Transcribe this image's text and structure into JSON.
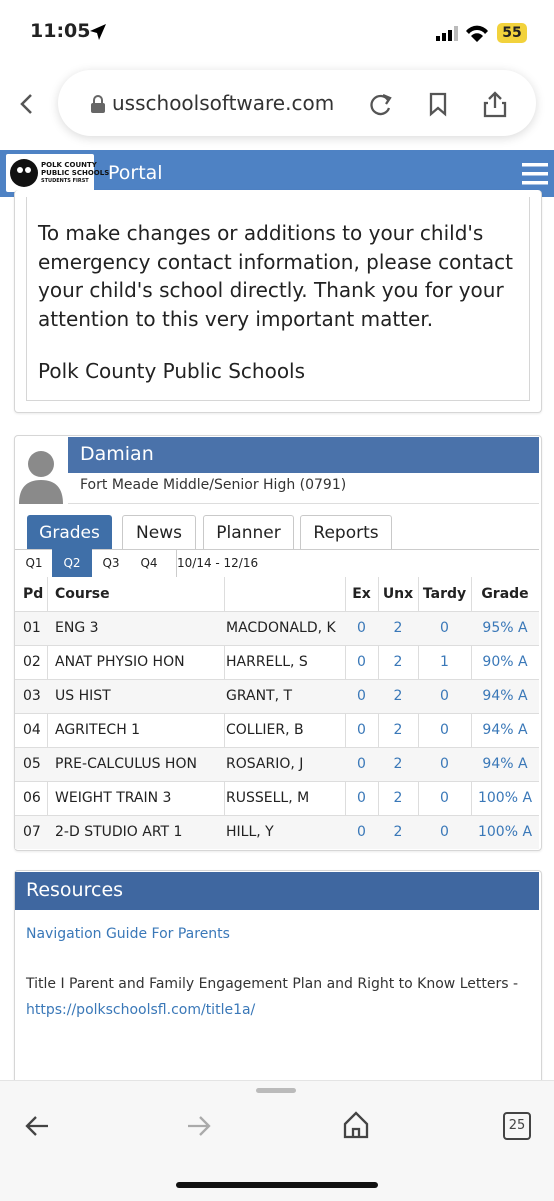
{
  "status": {
    "time": "11:05",
    "battery": "55"
  },
  "browser": {
    "url": "usschoolsoftware.com",
    "tabs": "25"
  },
  "header": {
    "logo": [
      "POLK COUNTY",
      "PUBLIC SCHOOLS",
      "STUDENTS FIRST"
    ],
    "title": "Portal"
  },
  "notice": {
    "lines": [
      "To make changes or additions to your child's",
      "emergency contact information, please contact",
      "your child's school directly.  Thank you for your",
      "attention to this very important matter."
    ],
    "signature": "Polk County Public Schools"
  },
  "student": {
    "name": "Damian",
    "school": "Fort Meade Middle/Senior High (0791)"
  },
  "tabs": [
    "Grades",
    "News",
    "Planner",
    "Reports"
  ],
  "quarters": [
    "Q1",
    "Q2",
    "Q3",
    "Q4"
  ],
  "date_range": "10/14 - 12/16",
  "table": {
    "headers": [
      "Pd",
      "Course",
      "Ex",
      "Unx",
      "Tardy",
      "Grade"
    ],
    "rows": [
      [
        "01",
        "ENG 3",
        "MACDONALD, K",
        "0",
        "2",
        "0",
        "95% A"
      ],
      [
        "02",
        "ANAT PHYSIO HON",
        "HARRELL, S",
        "0",
        "2",
        "1",
        "90% A"
      ],
      [
        "03",
        "US HIST",
        "GRANT, T",
        "0",
        "2",
        "0",
        "94% A"
      ],
      [
        "04",
        "AGRITECH 1",
        "COLLIER, B",
        "0",
        "2",
        "0",
        "94% A"
      ],
      [
        "05",
        "PRE-CALCULUS HON",
        "ROSARIO, J",
        "0",
        "2",
        "0",
        "94% A"
      ],
      [
        "06",
        "WEIGHT TRAIN 3",
        "RUSSELL, M",
        "0",
        "2",
        "0",
        "100% A"
      ],
      [
        "07",
        "2-D STUDIO ART 1",
        "HILL, Y",
        "0",
        "2",
        "0",
        "100% A"
      ]
    ]
  },
  "resources": {
    "title": "Resources",
    "link1": "Navigation Guide For Parents",
    "text": "Title I Parent and Family Engagement Plan and Right to Know Letters -",
    "link2": "https://polkschoolsfl.com/title1a/"
  }
}
